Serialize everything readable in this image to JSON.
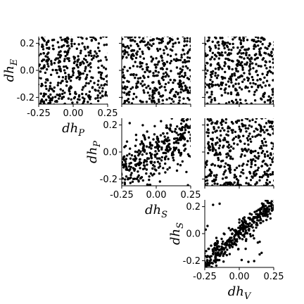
{
  "chart_data": [
    {
      "type": "scatter",
      "panel": "P-vs-E",
      "xlabel_main": "dh",
      "xlabel_sub": "P",
      "ylabel_main": "dh",
      "ylabel_sub": "E",
      "xlim": [
        -0.25,
        0.25
      ],
      "ylim": [
        -0.25,
        0.25
      ],
      "xticks": [
        "-0.25",
        "0.00",
        "0.25"
      ],
      "yticks": [
        "-0.2",
        "0.0",
        "0.2"
      ],
      "x_tick_labels_shown": true,
      "y_tick_labels_shown": true,
      "correlation": 0.0,
      "n_points": 420,
      "seed": 11
    },
    {
      "type": "scatter",
      "panel": "S-vs-E",
      "xlim": [
        -0.25,
        0.25
      ],
      "ylim": [
        -0.25,
        0.25
      ],
      "x_tick_labels_shown": false,
      "y_tick_labels_shown": false,
      "correlation": 0.0,
      "n_points": 420,
      "seed": 23
    },
    {
      "type": "scatter",
      "panel": "V-vs-E",
      "xlim": [
        -0.25,
        0.25
      ],
      "ylim": [
        -0.25,
        0.25
      ],
      "x_tick_labels_shown": false,
      "y_tick_labels_shown": false,
      "correlation": 0.0,
      "n_points": 420,
      "seed": 37
    },
    {
      "type": "scatter",
      "panel": "S-vs-P",
      "xlabel_main": "dh",
      "xlabel_sub": "S",
      "ylabel_main": "dh",
      "ylabel_sub": "P",
      "xlim": [
        -0.25,
        0.25
      ],
      "ylim": [
        -0.25,
        0.25
      ],
      "xticks": [
        "-0.25",
        "0.00",
        "0.25"
      ],
      "yticks": [
        "-0.2",
        "0.0",
        "0.2"
      ],
      "x_tick_labels_shown": true,
      "y_tick_labels_shown": true,
      "correlation": 0.55,
      "n_points": 420,
      "seed": 41
    },
    {
      "type": "scatter",
      "panel": "V-vs-P",
      "xlim": [
        -0.25,
        0.25
      ],
      "ylim": [
        -0.25,
        0.25
      ],
      "x_tick_labels_shown": false,
      "y_tick_labels_shown": false,
      "correlation": 0.0,
      "n_points": 420,
      "seed": 53
    },
    {
      "type": "scatter",
      "panel": "V-vs-S",
      "xlabel_main": "dh",
      "xlabel_sub": "V",
      "ylabel_main": "dh",
      "ylabel_sub": "S",
      "xlim": [
        -0.25,
        0.25
      ],
      "ylim": [
        -0.25,
        0.25
      ],
      "xticks": [
        "-0.25",
        "0.00",
        "0.25"
      ],
      "yticks": [
        "-0.2",
        "0.0",
        "0.2"
      ],
      "x_tick_labels_shown": true,
      "y_tick_labels_shown": true,
      "correlation": 0.85,
      "n_points": 420,
      "seed": 67
    }
  ],
  "colors": {
    "points": "#000000",
    "axes": "#000000",
    "background": "#ffffff"
  }
}
